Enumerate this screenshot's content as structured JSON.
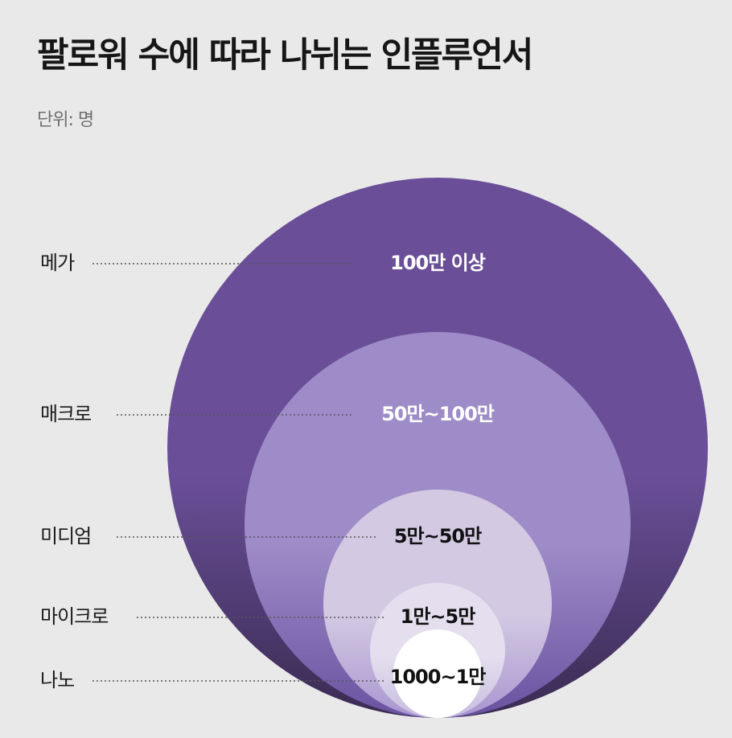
{
  "header": {
    "title": "팔로워 수에 따라 나뉘는 인플루언서",
    "unit": "단위: 명"
  },
  "tiers": [
    {
      "name": "메가",
      "range": "100만 이상",
      "fill_top": "#6a4f98",
      "fill_bottom": "#3a2b52",
      "text_color": "#ffffff"
    },
    {
      "name": "매크로",
      "range": "50만~100만",
      "fill_top": "#9e8cc8",
      "fill_bottom": "#6a52a0",
      "text_color": "#ffffff"
    },
    {
      "name": "미디엄",
      "range": "5만~50만",
      "fill_top": "#d3c9e3",
      "fill_bottom": "#a896cf",
      "text_color": "#111111"
    },
    {
      "name": "마이크로",
      "range": "1만~5만",
      "fill_top": "#e4deee",
      "fill_bottom": "#c8bde0",
      "text_color": "#111111"
    },
    {
      "name": "나노",
      "range": "1000~1만",
      "fill_top": "#ffffff",
      "fill_bottom": "#ffffff",
      "text_color": "#111111"
    }
  ]
}
